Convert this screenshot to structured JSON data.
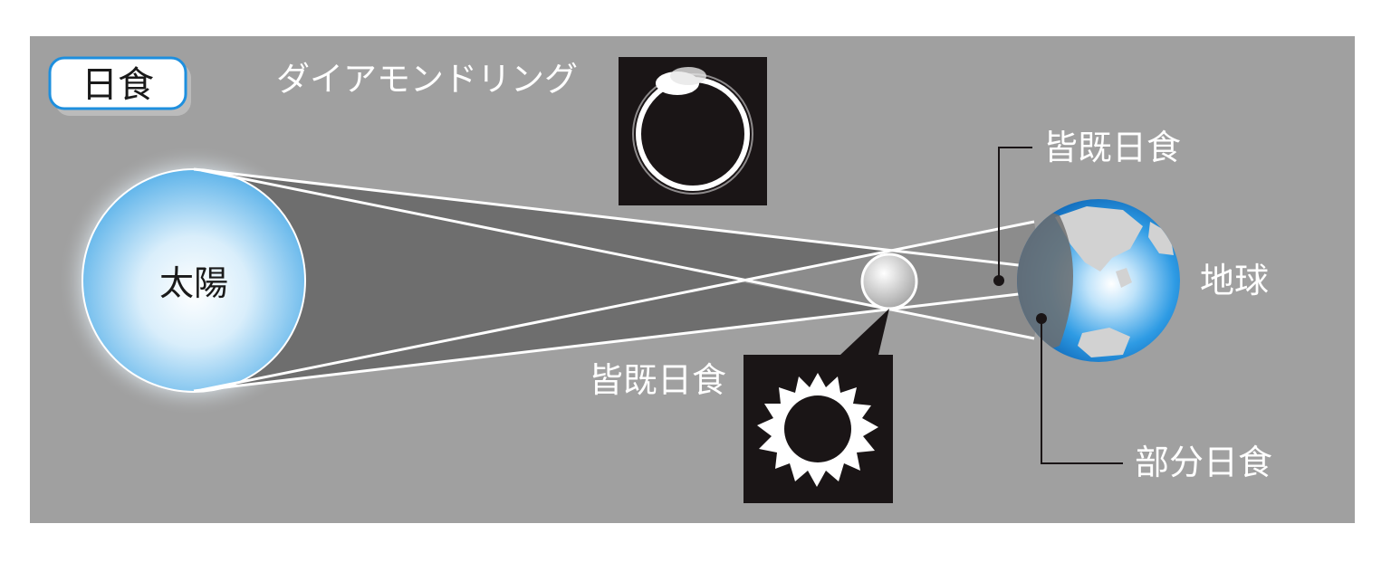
{
  "title": "日食",
  "labels": {
    "sun": "太陽",
    "earth": "地球",
    "diamond_ring": "ダイアモンドリング",
    "total_eclipse_upper": "皆既日食",
    "total_eclipse_lower": "皆既日食",
    "partial_eclipse": "部分日食"
  },
  "colors": {
    "background": "#a0a0a0",
    "umbra": "#6e6e6e",
    "sun": "#7fc3ee",
    "earth_ocean": "#1e8fde",
    "inset_bg": "#1a1516",
    "title_border": "#1e8fde"
  }
}
